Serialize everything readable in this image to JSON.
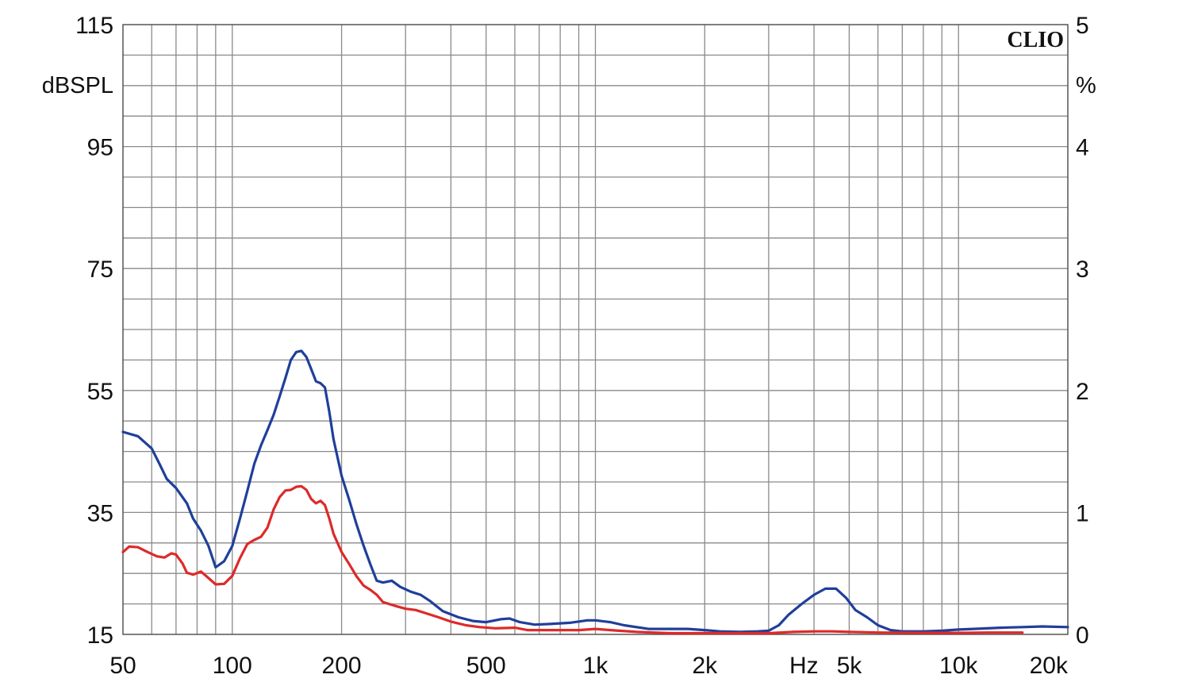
{
  "chart_data": {
    "type": "line",
    "brand": "CLIO",
    "xscale": "log",
    "xlim": [
      50,
      20000
    ],
    "ylim_left": [
      15,
      115
    ],
    "ylim_right": [
      0,
      5
    ],
    "y_left_unit": "dBSPL",
    "y_right_unit": "%",
    "x_unit": "Hz",
    "x_ticks": [
      {
        "value": 50,
        "label": "50"
      },
      {
        "value": 100,
        "label": "100"
      },
      {
        "value": 200,
        "label": "200"
      },
      {
        "value": 500,
        "label": "500"
      },
      {
        "value": 1000,
        "label": "1k"
      },
      {
        "value": 2000,
        "label": "2k"
      },
      {
        "value": 5000,
        "label": "5k"
      },
      {
        "value": 10000,
        "label": "10k"
      },
      {
        "value": 20000,
        "label": "20k"
      }
    ],
    "y_left_ticks": [
      {
        "value": 115,
        "label": "115"
      },
      {
        "value": 95,
        "label": "95"
      },
      {
        "value": 75,
        "label": "75"
      },
      {
        "value": 55,
        "label": "55"
      },
      {
        "value": 35,
        "label": "35"
      },
      {
        "value": 15,
        "label": "15"
      }
    ],
    "y_right_ticks": [
      {
        "value": 5,
        "label": "5"
      },
      {
        "value": 4,
        "label": "4"
      },
      {
        "value": 3,
        "label": "3"
      },
      {
        "value": 2,
        "label": "2"
      },
      {
        "value": 1,
        "label": "1"
      },
      {
        "value": 0,
        "label": "0"
      }
    ],
    "grid": true,
    "series": [
      {
        "color": "#1f3f9a",
        "axis": "left",
        "points": [
          [
            50,
            48.2
          ],
          [
            55,
            47.5
          ],
          [
            60,
            45.5
          ],
          [
            63,
            43
          ],
          [
            66,
            40.5
          ],
          [
            70,
            39
          ],
          [
            75,
            36.5
          ],
          [
            78,
            34
          ],
          [
            82,
            32
          ],
          [
            86,
            29.5
          ],
          [
            90,
            26
          ],
          [
            95,
            27
          ],
          [
            100,
            29.5
          ],
          [
            105,
            34
          ],
          [
            110,
            38.5
          ],
          [
            115,
            43
          ],
          [
            120,
            46
          ],
          [
            125,
            48.5
          ],
          [
            130,
            51
          ],
          [
            135,
            54
          ],
          [
            140,
            57
          ],
          [
            145,
            60
          ],
          [
            150,
            61.3
          ],
          [
            155,
            61.5
          ],
          [
            160,
            60.5
          ],
          [
            165,
            58.5
          ],
          [
            170,
            56.5
          ],
          [
            175,
            56.2
          ],
          [
            180,
            55.5
          ],
          [
            185,
            51.5
          ],
          [
            190,
            47
          ],
          [
            200,
            41
          ],
          [
            210,
            37
          ],
          [
            220,
            33
          ],
          [
            230,
            29.5
          ],
          [
            240,
            26.5
          ],
          [
            250,
            23.8
          ],
          [
            260,
            23.5
          ],
          [
            275,
            23.8
          ],
          [
            290,
            22.8
          ],
          [
            310,
            22
          ],
          [
            330,
            21.5
          ],
          [
            350,
            20.5
          ],
          [
            380,
            18.8
          ],
          [
            420,
            17.8
          ],
          [
            460,
            17.2
          ],
          [
            500,
            17
          ],
          [
            550,
            17.5
          ],
          [
            580,
            17.6
          ],
          [
            620,
            17
          ],
          [
            680,
            16.6
          ],
          [
            750,
            16.7
          ],
          [
            850,
            16.9
          ],
          [
            950,
            17.3
          ],
          [
            1000,
            17.3
          ],
          [
            1100,
            17
          ],
          [
            1200,
            16.5
          ],
          [
            1400,
            15.9
          ],
          [
            1600,
            15.9
          ],
          [
            1800,
            15.9
          ],
          [
            2000,
            15.7
          ],
          [
            2200,
            15.5
          ],
          [
            2500,
            15.4
          ],
          [
            2800,
            15.5
          ],
          [
            3000,
            15.6
          ],
          [
            3200,
            16.5
          ],
          [
            3400,
            18.2
          ],
          [
            3700,
            20
          ],
          [
            4000,
            21.5
          ],
          [
            4300,
            22.5
          ],
          [
            4600,
            22.5
          ],
          [
            4900,
            21
          ],
          [
            5200,
            19
          ],
          [
            5600,
            17.8
          ],
          [
            6000,
            16.5
          ],
          [
            6500,
            15.7
          ],
          [
            7000,
            15.5
          ],
          [
            8000,
            15.5
          ],
          [
            9000,
            15.6
          ],
          [
            10000,
            15.8
          ],
          [
            11000,
            15.9
          ],
          [
            13000,
            16.1
          ],
          [
            15000,
            16.2
          ],
          [
            17000,
            16.3
          ],
          [
            20000,
            16.2
          ]
        ]
      },
      {
        "color": "#dd2a2a",
        "axis": "left",
        "points": [
          [
            50,
            28.5
          ],
          [
            52,
            29.4
          ],
          [
            55,
            29.3
          ],
          [
            58,
            28.6
          ],
          [
            62,
            27.8
          ],
          [
            65,
            27.6
          ],
          [
            68,
            28.3
          ],
          [
            70,
            28.1
          ],
          [
            73,
            26.6
          ],
          [
            75,
            25.1
          ],
          [
            78,
            24.8
          ],
          [
            82,
            25.3
          ],
          [
            85,
            24.5
          ],
          [
            90,
            23.2
          ],
          [
            95,
            23.3
          ],
          [
            100,
            24.6
          ],
          [
            105,
            27.5
          ],
          [
            110,
            29.8
          ],
          [
            115,
            30.5
          ],
          [
            120,
            31
          ],
          [
            125,
            32.5
          ],
          [
            130,
            35.5
          ],
          [
            135,
            37.5
          ],
          [
            140,
            38.6
          ],
          [
            145,
            38.7
          ],
          [
            150,
            39.2
          ],
          [
            155,
            39.3
          ],
          [
            160,
            38.7
          ],
          [
            165,
            37.2
          ],
          [
            170,
            36.5
          ],
          [
            175,
            36.9
          ],
          [
            180,
            36.2
          ],
          [
            185,
            34
          ],
          [
            190,
            31.5
          ],
          [
            200,
            28.5
          ],
          [
            210,
            26.5
          ],
          [
            220,
            24.5
          ],
          [
            230,
            23
          ],
          [
            240,
            22.3
          ],
          [
            250,
            21.5
          ],
          [
            260,
            20.3
          ],
          [
            280,
            19.7
          ],
          [
            300,
            19.2
          ],
          [
            320,
            19
          ],
          [
            340,
            18.5
          ],
          [
            370,
            17.8
          ],
          [
            400,
            17.1
          ],
          [
            440,
            16.5
          ],
          [
            480,
            16.2
          ],
          [
            530,
            16
          ],
          [
            600,
            16.1
          ],
          [
            650,
            15.7
          ],
          [
            700,
            15.7
          ],
          [
            800,
            15.7
          ],
          [
            900,
            15.7
          ],
          [
            1000,
            15.9
          ],
          [
            1100,
            15.7
          ],
          [
            1300,
            15.4
          ],
          [
            1600,
            15.2
          ],
          [
            2000,
            15.2
          ],
          [
            2500,
            15.2
          ],
          [
            3000,
            15.2
          ],
          [
            3500,
            15.4
          ],
          [
            4000,
            15.5
          ],
          [
            4500,
            15.5
          ],
          [
            5000,
            15.4
          ],
          [
            6000,
            15.3
          ],
          [
            8000,
            15.25
          ],
          [
            10000,
            15.25
          ],
          [
            12000,
            15.3
          ],
          [
            15000,
            15.3
          ]
        ]
      }
    ]
  }
}
